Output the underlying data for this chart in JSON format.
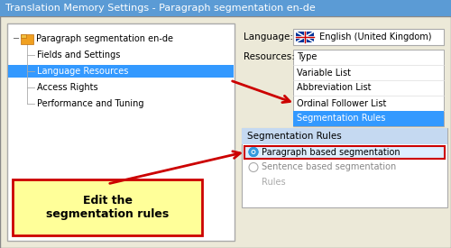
{
  "title": "Translation Memory Settings - Paragraph segmentation en-de",
  "title_bg": "#5b9bd5",
  "title_color": "white",
  "title_fontsize": 8,
  "outer_bg": "#d4d0c8",
  "inner_bg": "#ece9d8",
  "panel_bg": "#ffffff",
  "tree_items": [
    {
      "label": "Paragraph segmentation en-de",
      "indent": 0.06,
      "selected": false
    },
    {
      "label": "Fields and Settings",
      "indent": 0.1,
      "selected": false
    },
    {
      "label": "Language Resources",
      "indent": 0.1,
      "selected": true
    },
    {
      "label": "Access Rights",
      "indent": 0.1,
      "selected": false
    },
    {
      "label": "Performance and Tuning",
      "indent": 0.1,
      "selected": false
    }
  ],
  "tree_selected_bg": "#3399ff",
  "tree_selected_fg": "#ffffff",
  "tree_normal_fg": "#000000",
  "tree_fontsize": 7,
  "language_label": "Language:",
  "language_value": " English (United Kingdom)",
  "resources_label": "Resources:",
  "resource_items": [
    "Type",
    "Variable List",
    "Abbreviation List",
    "Ordinal Follower List",
    "Segmentation Rules"
  ],
  "resource_selected": "Segmentation Rules",
  "resource_selected_bg": "#3399ff",
  "resource_selected_fg": "#ffffff",
  "resource_normal_fg": "#000000",
  "resource_fontsize": 7,
  "seg_panel_header": "Segmentation Rules",
  "seg_panel_header_bg": "#c5d9f1",
  "seg_panel_bg": "#ffffff",
  "radio_items": [
    "Paragraph based segmentation",
    "Sentence based segmentation"
  ],
  "radio_selected": 0,
  "radio_fontsize": 7,
  "rules_text": "Rules",
  "rules_color": "#aaaaaa",
  "callout_text": "Edit the\nsegmentation rules",
  "callout_bg": "#ffff99",
  "callout_border": "#cc0000",
  "callout_fontsize": 9,
  "callout_fontweight": "bold",
  "arrow_color": "#cc0000",
  "arrow_lw": 2.0
}
